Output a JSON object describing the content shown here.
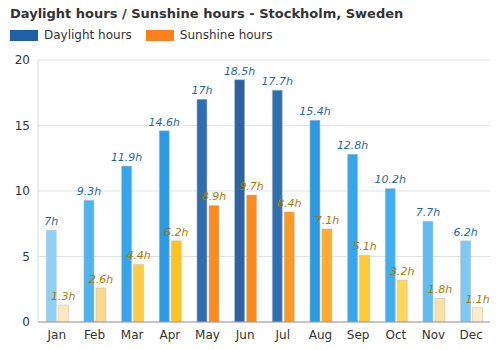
{
  "chart_data": {
    "type": "bar",
    "title": "Daylight hours / Sunshine hours - Stockholm, Sweden",
    "categories": [
      "Jan",
      "Feb",
      "Mar",
      "Apr",
      "May",
      "Jun",
      "Jul",
      "Aug",
      "Sep",
      "Oct",
      "Nov",
      "Dec"
    ],
    "series": [
      {
        "name": "Daylight hours",
        "color": "#1f5fa8",
        "colors": [
          "#8fd0f7",
          "#4db4ef",
          "#36a6ec",
          "#2a9ae6",
          "#2e6fb3",
          "#2a63a6",
          "#2e6fb3",
          "#2a9ae6",
          "#36a6ec",
          "#43aeee",
          "#5ebdf2",
          "#7ccaf5"
        ],
        "values": [
          7,
          9.3,
          11.9,
          14.6,
          17,
          18.5,
          17.7,
          15.4,
          12.8,
          10.2,
          7.7,
          6.2
        ],
        "value_labels": [
          "7h",
          "9.3h",
          "11.9h",
          "14.6h",
          "17h",
          "18.5h",
          "17.7h",
          "15.4h",
          "12.8h",
          "10.2h",
          "7.7h",
          "6.2h"
        ]
      },
      {
        "name": "Sunshine hours",
        "color": "#ff7f1a",
        "colors": [
          "#fde9b8",
          "#fdd98e",
          "#ffcc44",
          "#ffc21f",
          "#ff8c1a",
          "#ff8a1a",
          "#ff981f",
          "#ffae2e",
          "#ffca38",
          "#ffd65e",
          "#fde2a4",
          "#fdeec8"
        ],
        "values": [
          1.3,
          2.6,
          4.4,
          6.2,
          8.9,
          9.7,
          8.4,
          7.1,
          5.1,
          3.2,
          1.8,
          1.1
        ],
        "value_labels": [
          "1.3h",
          "2.6h",
          "4.4h",
          "6.2h",
          "8.9h",
          "9.7h",
          "8.4h",
          "7.1h",
          "5.1h",
          "3.2h",
          "1.8h",
          "1.1h"
        ]
      }
    ],
    "ylim": [
      0,
      20
    ],
    "yticks": [
      0,
      5,
      10,
      15,
      20
    ],
    "grid": true,
    "data_labels": true,
    "legend": "top-left"
  }
}
